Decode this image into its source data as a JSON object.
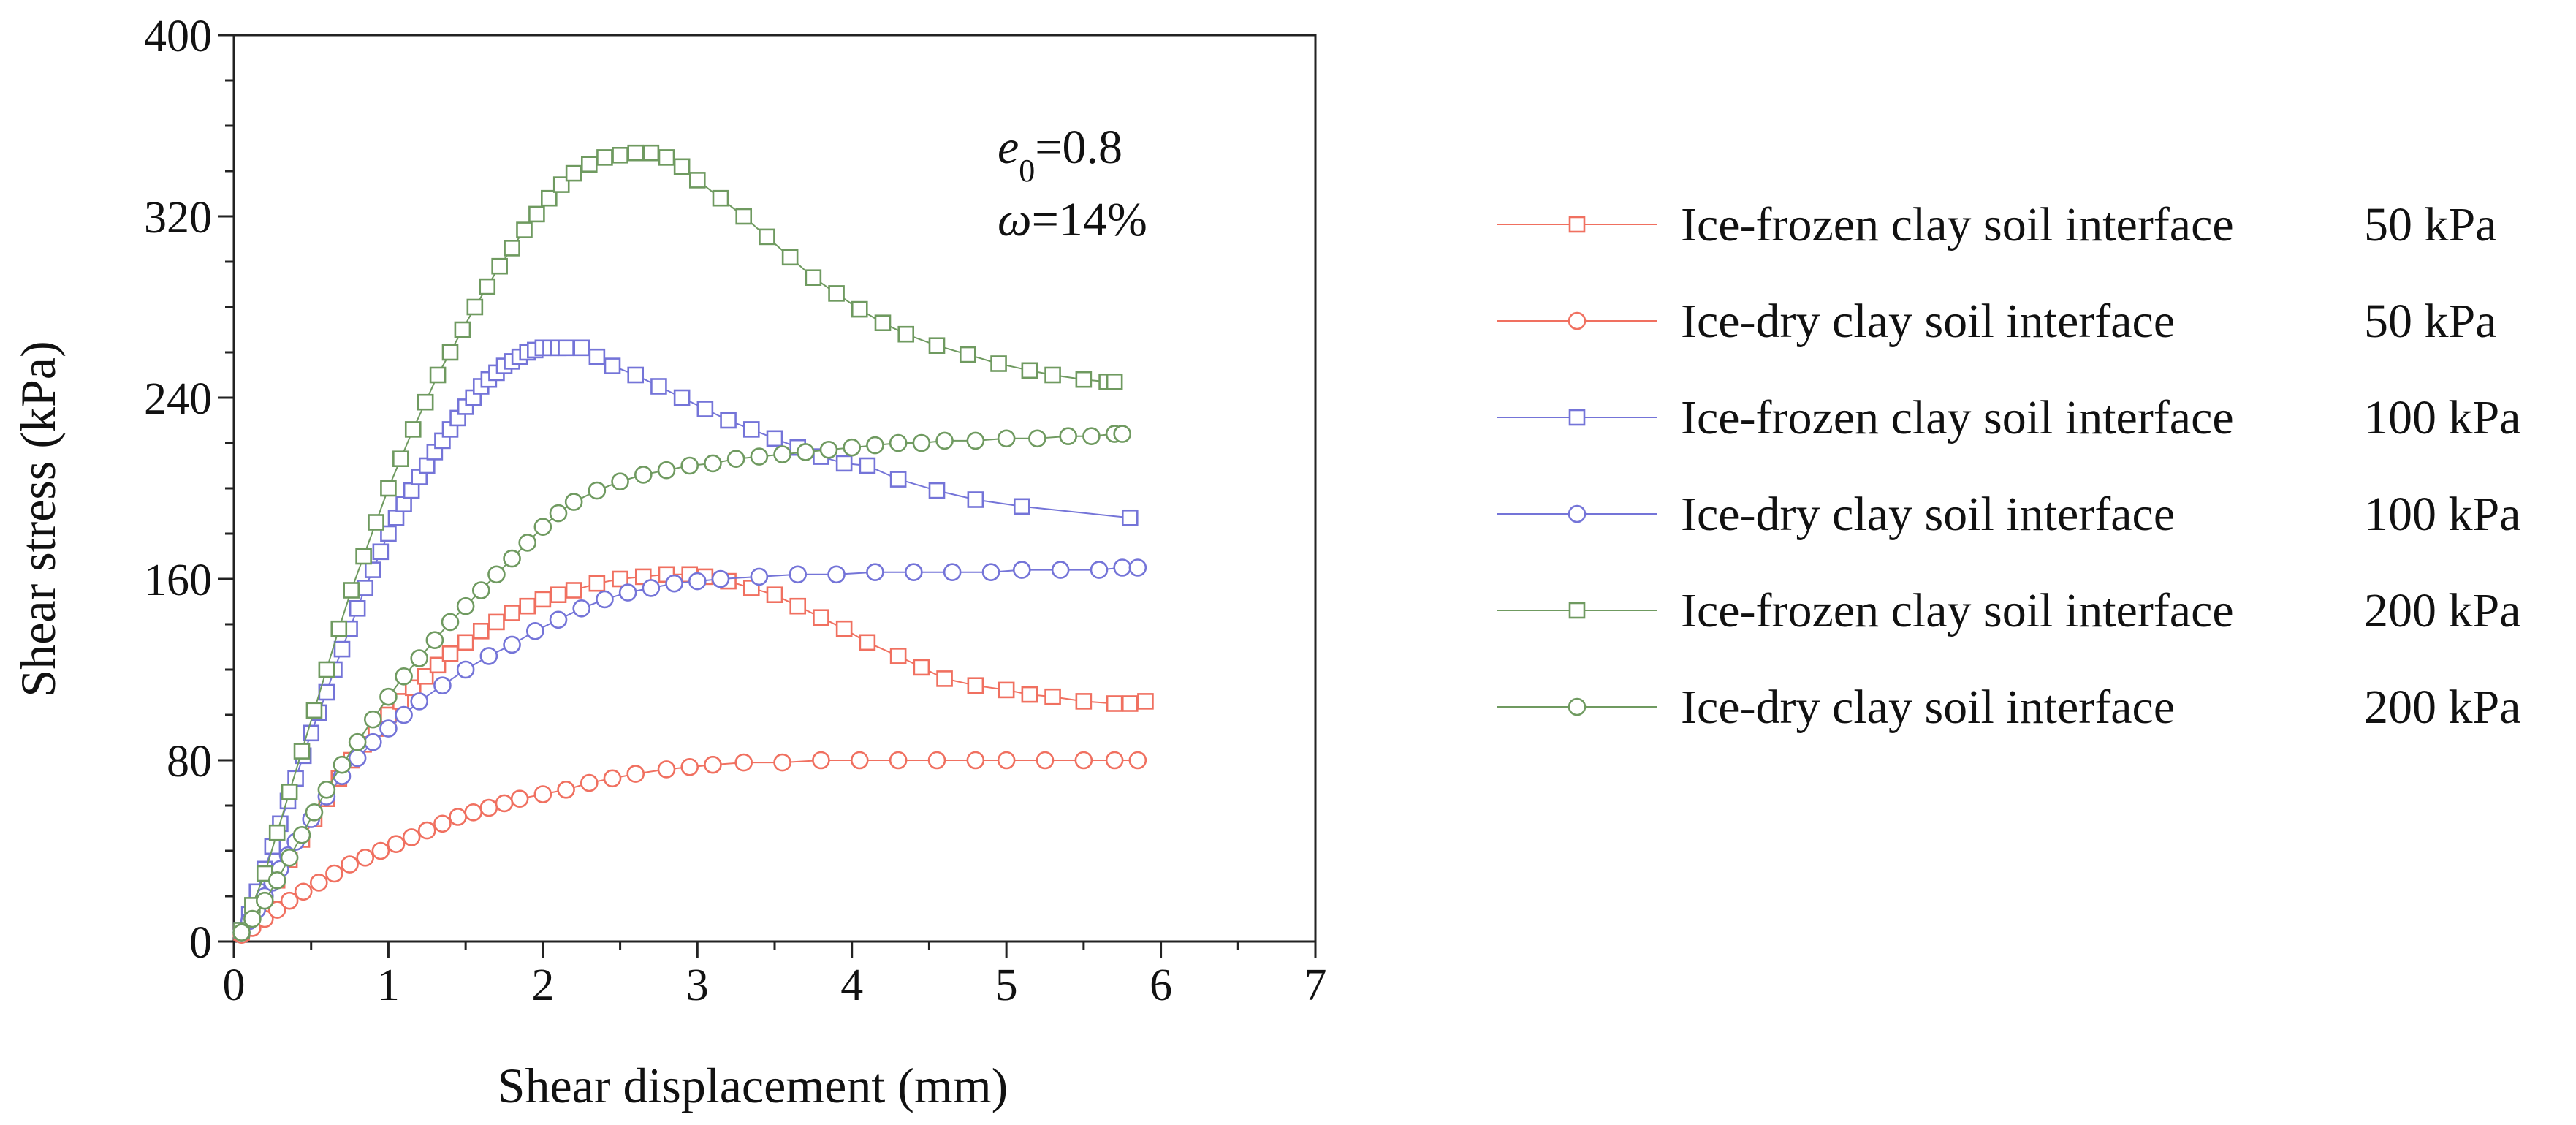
{
  "chart_data": {
    "type": "line",
    "xlabel": "Shear displacement (mm)",
    "ylabel": "Shear stress (kPa)",
    "xlim": [
      0,
      7
    ],
    "ylim": [
      0,
      400
    ],
    "xticks": [
      "0",
      "1",
      "2",
      "3",
      "4",
      "5",
      "6",
      "7"
    ],
    "yticks": [
      "0",
      "80",
      "160",
      "240",
      "320",
      "400"
    ],
    "grid": false,
    "legend_position": "right",
    "annotations": [
      {
        "var": "e",
        "sub": "0",
        "text": "=0.8"
      },
      {
        "var": "ω",
        "sub": "",
        "text": "=14%"
      }
    ],
    "series": [
      {
        "name": "Ice-frozen clay soil interface",
        "pressure": "50 kPa",
        "color": "#f07060",
        "marker": "square",
        "points": [
          [
            0.05,
            4
          ],
          [
            0.12,
            10
          ],
          [
            0.2,
            18
          ],
          [
            0.28,
            27
          ],
          [
            0.36,
            36
          ],
          [
            0.44,
            45
          ],
          [
            0.52,
            54
          ],
          [
            0.6,
            63
          ],
          [
            0.68,
            72
          ],
          [
            0.76,
            80
          ],
          [
            0.84,
            87
          ],
          [
            0.92,
            94
          ],
          [
            1.0,
            100
          ],
          [
            1.08,
            106
          ],
          [
            1.16,
            112
          ],
          [
            1.24,
            117
          ],
          [
            1.32,
            122
          ],
          [
            1.4,
            127
          ],
          [
            1.5,
            132
          ],
          [
            1.6,
            137
          ],
          [
            1.7,
            141
          ],
          [
            1.8,
            145
          ],
          [
            1.9,
            148
          ],
          [
            2.0,
            151
          ],
          [
            2.1,
            153
          ],
          [
            2.2,
            155
          ],
          [
            2.35,
            158
          ],
          [
            2.5,
            160
          ],
          [
            2.65,
            161
          ],
          [
            2.8,
            162
          ],
          [
            2.95,
            162
          ],
          [
            3.05,
            161
          ],
          [
            3.2,
            159
          ],
          [
            3.35,
            156
          ],
          [
            3.5,
            153
          ],
          [
            3.65,
            148
          ],
          [
            3.8,
            143
          ],
          [
            3.95,
            138
          ],
          [
            4.1,
            132
          ],
          [
            4.3,
            126
          ],
          [
            4.45,
            121
          ],
          [
            4.6,
            116
          ],
          [
            4.8,
            113
          ],
          [
            5.0,
            111
          ],
          [
            5.15,
            109
          ],
          [
            5.3,
            108
          ],
          [
            5.5,
            106
          ],
          [
            5.7,
            105
          ],
          [
            5.8,
            105
          ],
          [
            5.9,
            106
          ]
        ]
      },
      {
        "name": "Ice-dry clay soil interface",
        "pressure": "50 kPa",
        "color": "#f07060",
        "marker": "circle",
        "points": [
          [
            0.05,
            3
          ],
          [
            0.12,
            6
          ],
          [
            0.2,
            10
          ],
          [
            0.28,
            14
          ],
          [
            0.36,
            18
          ],
          [
            0.45,
            22
          ],
          [
            0.55,
            26
          ],
          [
            0.65,
            30
          ],
          [
            0.75,
            34
          ],
          [
            0.85,
            37
          ],
          [
            0.95,
            40
          ],
          [
            1.05,
            43
          ],
          [
            1.15,
            46
          ],
          [
            1.25,
            49
          ],
          [
            1.35,
            52
          ],
          [
            1.45,
            55
          ],
          [
            1.55,
            57
          ],
          [
            1.65,
            59
          ],
          [
            1.75,
            61
          ],
          [
            1.85,
            63
          ],
          [
            2.0,
            65
          ],
          [
            2.15,
            67
          ],
          [
            2.3,
            70
          ],
          [
            2.45,
            72
          ],
          [
            2.6,
            74
          ],
          [
            2.8,
            76
          ],
          [
            2.95,
            77
          ],
          [
            3.1,
            78
          ],
          [
            3.3,
            79
          ],
          [
            3.55,
            79
          ],
          [
            3.8,
            80
          ],
          [
            4.05,
            80
          ],
          [
            4.3,
            80
          ],
          [
            4.55,
            80
          ],
          [
            4.8,
            80
          ],
          [
            5.0,
            80
          ],
          [
            5.25,
            80
          ],
          [
            5.5,
            80
          ],
          [
            5.7,
            80
          ],
          [
            5.85,
            80
          ]
        ]
      },
      {
        "name": "Ice-frozen clay soil interface",
        "pressure": "100 kPa",
        "color": "#7474d8",
        "marker": "square",
        "points": [
          [
            0.05,
            5
          ],
          [
            0.1,
            12
          ],
          [
            0.15,
            22
          ],
          [
            0.2,
            32
          ],
          [
            0.25,
            42
          ],
          [
            0.3,
            52
          ],
          [
            0.35,
            62
          ],
          [
            0.4,
            72
          ],
          [
            0.45,
            82
          ],
          [
            0.5,
            92
          ],
          [
            0.55,
            101
          ],
          [
            0.6,
            110
          ],
          [
            0.65,
            120
          ],
          [
            0.7,
            129
          ],
          [
            0.75,
            138
          ],
          [
            0.8,
            147
          ],
          [
            0.85,
            156
          ],
          [
            0.9,
            164
          ],
          [
            0.95,
            172
          ],
          [
            1.0,
            180
          ],
          [
            1.05,
            187
          ],
          [
            1.1,
            193
          ],
          [
            1.15,
            199
          ],
          [
            1.2,
            205
          ],
          [
            1.25,
            210
          ],
          [
            1.3,
            216
          ],
          [
            1.35,
            221
          ],
          [
            1.4,
            226
          ],
          [
            1.45,
            231
          ],
          [
            1.5,
            236
          ],
          [
            1.55,
            240
          ],
          [
            1.6,
            245
          ],
          [
            1.65,
            248
          ],
          [
            1.7,
            251
          ],
          [
            1.75,
            254
          ],
          [
            1.8,
            256
          ],
          [
            1.85,
            258
          ],
          [
            1.9,
            260
          ],
          [
            1.95,
            261
          ],
          [
            2.0,
            262
          ],
          [
            2.05,
            262
          ],
          [
            2.1,
            262
          ],
          [
            2.15,
            262
          ],
          [
            2.25,
            262
          ],
          [
            2.35,
            258
          ],
          [
            2.45,
            254
          ],
          [
            2.6,
            250
          ],
          [
            2.75,
            245
          ],
          [
            2.9,
            240
          ],
          [
            3.05,
            235
          ],
          [
            3.2,
            230
          ],
          [
            3.35,
            226
          ],
          [
            3.5,
            222
          ],
          [
            3.65,
            218
          ],
          [
            3.8,
            214
          ],
          [
            3.95,
            211
          ],
          [
            4.1,
            210
          ],
          [
            4.3,
            204
          ],
          [
            4.55,
            199
          ],
          [
            4.8,
            195
          ],
          [
            5.1,
            192
          ],
          [
            5.8,
            187
          ]
        ]
      },
      {
        "name": "Ice-dry clay soil interface",
        "pressure": "100 kPa",
        "color": "#7474d8",
        "marker": "circle",
        "points": [
          [
            0.05,
            4
          ],
          [
            0.1,
            9
          ],
          [
            0.15,
            14
          ],
          [
            0.2,
            20
          ],
          [
            0.25,
            26
          ],
          [
            0.3,
            32
          ],
          [
            0.35,
            38
          ],
          [
            0.4,
            44
          ],
          [
            0.5,
            54
          ],
          [
            0.6,
            64
          ],
          [
            0.7,
            73
          ],
          [
            0.8,
            81
          ],
          [
            0.9,
            88
          ],
          [
            1.0,
            94
          ],
          [
            1.1,
            100
          ],
          [
            1.2,
            106
          ],
          [
            1.35,
            113
          ],
          [
            1.5,
            120
          ],
          [
            1.65,
            126
          ],
          [
            1.8,
            131
          ],
          [
            1.95,
            137
          ],
          [
            2.1,
            142
          ],
          [
            2.25,
            147
          ],
          [
            2.4,
            151
          ],
          [
            2.55,
            154
          ],
          [
            2.7,
            156
          ],
          [
            2.85,
            158
          ],
          [
            3.0,
            159
          ],
          [
            3.15,
            160
          ],
          [
            3.4,
            161
          ],
          [
            3.65,
            162
          ],
          [
            3.9,
            162
          ],
          [
            4.15,
            163
          ],
          [
            4.4,
            163
          ],
          [
            4.65,
            163
          ],
          [
            4.9,
            163
          ],
          [
            5.1,
            164
          ],
          [
            5.35,
            164
          ],
          [
            5.6,
            164
          ],
          [
            5.75,
            165
          ],
          [
            5.85,
            165
          ]
        ]
      },
      {
        "name": "Ice-frozen clay soil interface",
        "pressure": "200 kPa",
        "color": "#6f9a60",
        "marker": "square",
        "points": [
          [
            0.05,
            5
          ],
          [
            0.12,
            16
          ],
          [
            0.2,
            30
          ],
          [
            0.28,
            48
          ],
          [
            0.36,
            66
          ],
          [
            0.44,
            84
          ],
          [
            0.52,
            102
          ],
          [
            0.6,
            120
          ],
          [
            0.68,
            138
          ],
          [
            0.76,
            155
          ],
          [
            0.84,
            170
          ],
          [
            0.92,
            185
          ],
          [
            1.0,
            200
          ],
          [
            1.08,
            213
          ],
          [
            1.16,
            226
          ],
          [
            1.24,
            238
          ],
          [
            1.32,
            250
          ],
          [
            1.4,
            260
          ],
          [
            1.48,
            270
          ],
          [
            1.56,
            280
          ],
          [
            1.64,
            289
          ],
          [
            1.72,
            298
          ],
          [
            1.8,
            306
          ],
          [
            1.88,
            314
          ],
          [
            1.96,
            321
          ],
          [
            2.04,
            328
          ],
          [
            2.12,
            334
          ],
          [
            2.2,
            339
          ],
          [
            2.3,
            343
          ],
          [
            2.4,
            346
          ],
          [
            2.5,
            347
          ],
          [
            2.6,
            348
          ],
          [
            2.7,
            348
          ],
          [
            2.8,
            346
          ],
          [
            2.9,
            342
          ],
          [
            3.0,
            336
          ],
          [
            3.15,
            328
          ],
          [
            3.3,
            320
          ],
          [
            3.45,
            311
          ],
          [
            3.6,
            302
          ],
          [
            3.75,
            293
          ],
          [
            3.9,
            286
          ],
          [
            4.05,
            279
          ],
          [
            4.2,
            273
          ],
          [
            4.35,
            268
          ],
          [
            4.55,
            263
          ],
          [
            4.75,
            259
          ],
          [
            4.95,
            255
          ],
          [
            5.15,
            252
          ],
          [
            5.3,
            250
          ],
          [
            5.5,
            248
          ],
          [
            5.65,
            247
          ],
          [
            5.7,
            247
          ]
        ]
      },
      {
        "name": "Ice-dry clay soil interface",
        "pressure": "200 kPa",
        "color": "#6f9a60",
        "marker": "circle",
        "points": [
          [
            0.05,
            4
          ],
          [
            0.12,
            10
          ],
          [
            0.2,
            18
          ],
          [
            0.28,
            27
          ],
          [
            0.36,
            37
          ],
          [
            0.44,
            47
          ],
          [
            0.52,
            57
          ],
          [
            0.6,
            67
          ],
          [
            0.7,
            78
          ],
          [
            0.8,
            88
          ],
          [
            0.9,
            98
          ],
          [
            1.0,
            108
          ],
          [
            1.1,
            117
          ],
          [
            1.2,
            125
          ],
          [
            1.3,
            133
          ],
          [
            1.4,
            141
          ],
          [
            1.5,
            148
          ],
          [
            1.6,
            155
          ],
          [
            1.7,
            162
          ],
          [
            1.8,
            169
          ],
          [
            1.9,
            176
          ],
          [
            2.0,
            183
          ],
          [
            2.1,
            189
          ],
          [
            2.2,
            194
          ],
          [
            2.35,
            199
          ],
          [
            2.5,
            203
          ],
          [
            2.65,
            206
          ],
          [
            2.8,
            208
          ],
          [
            2.95,
            210
          ],
          [
            3.1,
            211
          ],
          [
            3.25,
            213
          ],
          [
            3.4,
            214
          ],
          [
            3.55,
            215
          ],
          [
            3.7,
            216
          ],
          [
            3.85,
            217
          ],
          [
            4.0,
            218
          ],
          [
            4.15,
            219
          ],
          [
            4.3,
            220
          ],
          [
            4.45,
            220
          ],
          [
            4.6,
            221
          ],
          [
            4.8,
            221
          ],
          [
            5.0,
            222
          ],
          [
            5.2,
            222
          ],
          [
            5.4,
            223
          ],
          [
            5.55,
            223
          ],
          [
            5.7,
            224
          ],
          [
            5.75,
            224
          ]
        ]
      }
    ]
  }
}
